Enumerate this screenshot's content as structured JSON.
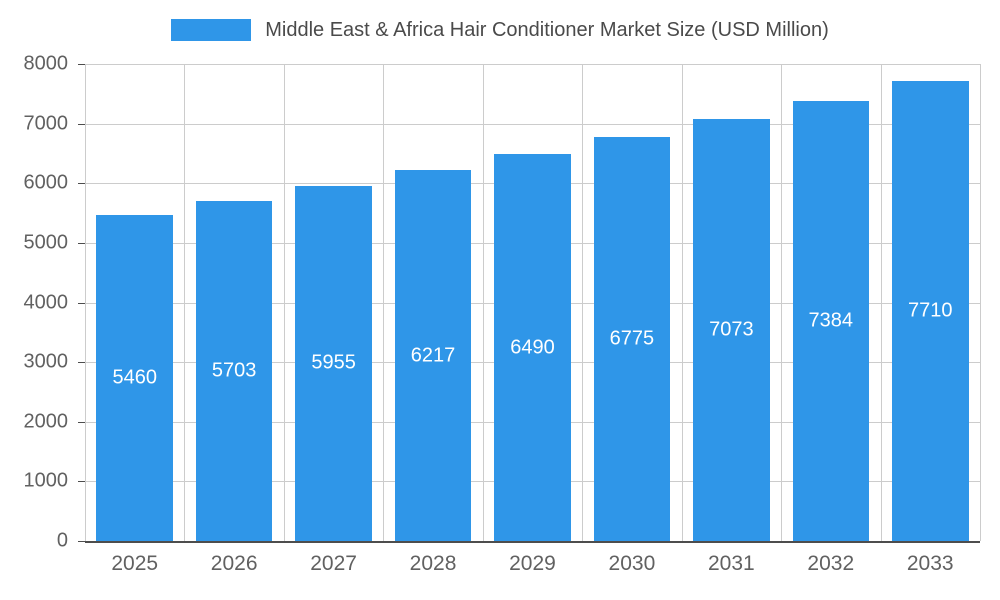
{
  "chart_data": {
    "type": "bar",
    "title": "Middle East & Africa Hair Conditioner Market Size (USD Million)",
    "categories": [
      "2025",
      "2026",
      "2027",
      "2028",
      "2029",
      "2030",
      "2031",
      "2032",
      "2033"
    ],
    "values": [
      5460,
      5703,
      5955,
      6217,
      6490,
      6775,
      7073,
      7384,
      7710
    ],
    "ylim": [
      0,
      8000
    ],
    "yticks": [
      0,
      1000,
      2000,
      3000,
      4000,
      5000,
      6000,
      7000,
      8000
    ],
    "ylabel": "",
    "xlabel": "",
    "grid": true,
    "legend_position": "top",
    "colors": {
      "bar": "#2f96e8",
      "grid": "#cccccc",
      "axis_text": "#616161",
      "title_text": "#4a4a4a",
      "value_label": "#ffffff",
      "baseline": "#4d4d4d"
    }
  }
}
